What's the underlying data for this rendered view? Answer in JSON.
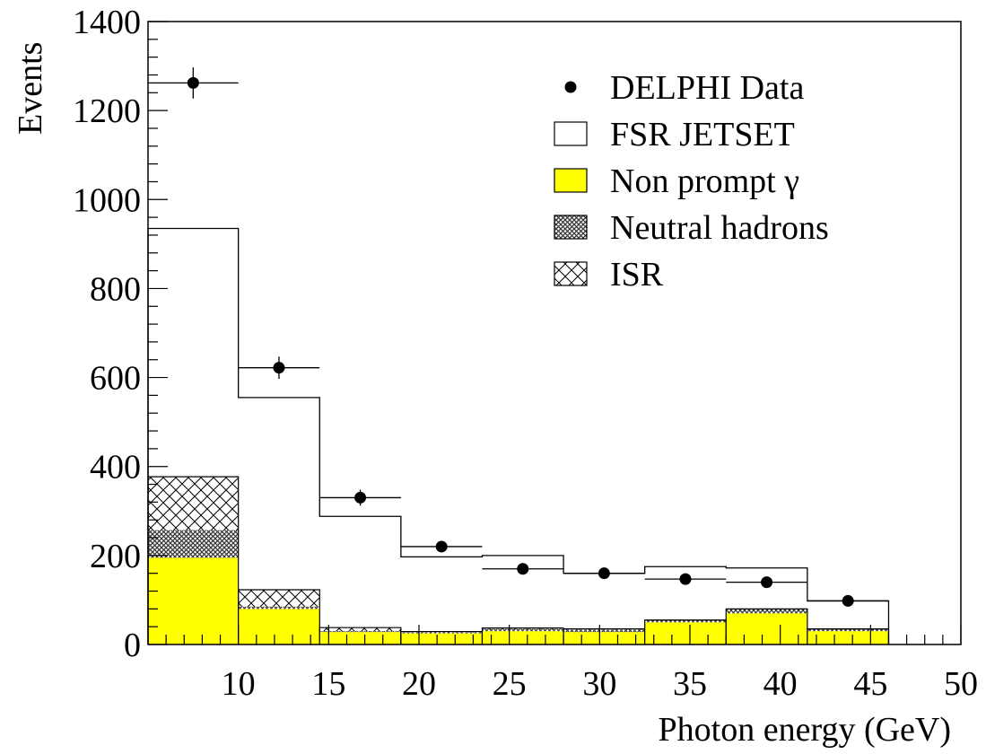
{
  "chart_data": {
    "type": "bar",
    "xlabel": "Photon energy (GeV)",
    "ylabel": "Events",
    "xlim": [
      5,
      50
    ],
    "ylim": [
      0,
      1400
    ],
    "x_ticks": [
      10,
      15,
      20,
      25,
      30,
      35,
      40,
      45,
      50
    ],
    "y_ticks": [
      0,
      200,
      400,
      600,
      800,
      1000,
      1200,
      1400
    ],
    "bin_edges": [
      5,
      10,
      14.5,
      19,
      23.5,
      28,
      32.5,
      37,
      41.5,
      46
    ],
    "fill_colors": {
      "non_prompt": "#ffff00",
      "neutral_hadrons": "#555555",
      "isr": "#000000"
    },
    "legend": {
      "position": "top-right",
      "entries": [
        {
          "key": "data",
          "label": "DELPHI Data"
        },
        {
          "key": "fsr",
          "label": "FSR JETSET"
        },
        {
          "key": "non_prompt",
          "label": "Non prompt γ"
        },
        {
          "key": "neutral_hadrons",
          "label": "Neutral hadrons"
        },
        {
          "key": "isr",
          "label": "ISR"
        }
      ]
    },
    "series": [
      {
        "key": "non_prompt",
        "values": [
          195,
          80,
          28,
          25,
          30,
          28,
          50,
          70,
          30
        ]
      },
      {
        "key": "neutral_hadrons",
        "values": [
          62,
          5,
          2,
          2,
          5,
          5,
          5,
          10,
          5
        ]
      },
      {
        "key": "isr",
        "values": [
          120,
          38,
          8,
          2,
          2,
          2,
          0,
          0,
          0
        ]
      },
      {
        "key": "fsr",
        "values": [
          935,
          555,
          288,
          197,
          200,
          160,
          175,
          172,
          98
        ]
      }
    ],
    "data_points": {
      "x": [
        7.5,
        12.25,
        16.75,
        21.25,
        25.75,
        30.25,
        34.75,
        39.25,
        43.75
      ],
      "y": [
        1262,
        622,
        330,
        220,
        170,
        160,
        147,
        140,
        98
      ],
      "yerr": [
        35,
        25,
        18,
        12,
        10,
        10,
        10,
        10,
        8
      ]
    }
  }
}
